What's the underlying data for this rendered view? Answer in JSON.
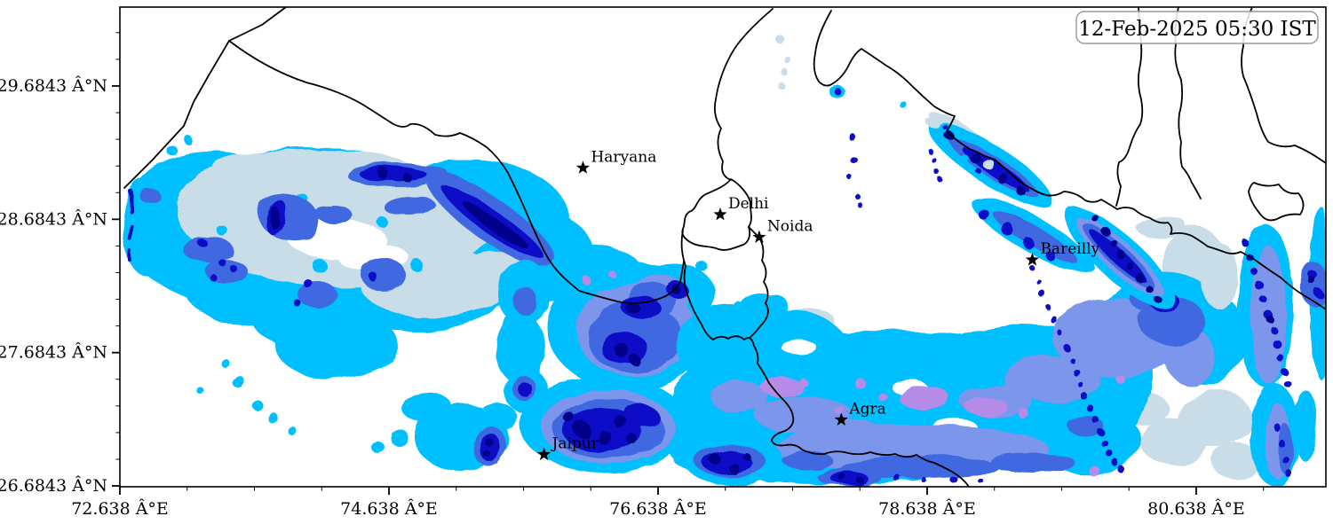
{
  "timestamp_box": {
    "label": "12-Feb-2025 05:30 IST"
  },
  "axes": {
    "x_ticks": [
      {
        "label": "72.638 Â°E",
        "value": 72.638
      },
      {
        "label": "74.638 Â°E",
        "value": 74.638
      },
      {
        "label": "76.638 Â°E",
        "value": 76.638
      },
      {
        "label": "78.638 Â°E",
        "value": 78.638
      },
      {
        "label": "80.638 Â°E",
        "value": 80.638
      }
    ],
    "y_ticks": [
      {
        "label": "29.6843 Â°N",
        "value": 29.6843
      },
      {
        "label": "28.6843 Â°N",
        "value": 28.6843
      },
      {
        "label": "27.6843 Â°N",
        "value": 27.6843
      },
      {
        "label": "26.6843 Â°N",
        "value": 26.6843
      }
    ],
    "x_range": [
      72.638,
      81.602
    ],
    "y_range": [
      26.678,
      30.276
    ],
    "x_minor_step": 0.5,
    "y_minor_step": 0.2
  },
  "cities": [
    {
      "name": "Haryana",
      "lon": 76.08,
      "lat": 29.07
    },
    {
      "name": "Delhi",
      "lon": 77.1,
      "lat": 28.72
    },
    {
      "name": "Noida",
      "lon": 77.39,
      "lat": 28.55
    },
    {
      "name": "Bareilly",
      "lon": 79.42,
      "lat": 28.38
    },
    {
      "name": "Agra",
      "lon": 78.0,
      "lat": 27.18
    },
    {
      "name": "Jaipur",
      "lon": 75.79,
      "lat": 26.92
    }
  ],
  "map": {
    "background": "#FFFFFF",
    "frame_color": "#000000",
    "boundary_color": "#000000",
    "marker_color": "#000000",
    "timestamp_border_color": "#999999",
    "palette": {
      "i1": "#C8DDE8",
      "i2": "#00BFFF",
      "i3": "#7B96EC",
      "i4": "#B48CE8",
      "i5": "#4169E1",
      "i6": "#0D0DC8",
      "i7": "#00008B",
      "hole": "#FFFFFF"
    }
  }
}
